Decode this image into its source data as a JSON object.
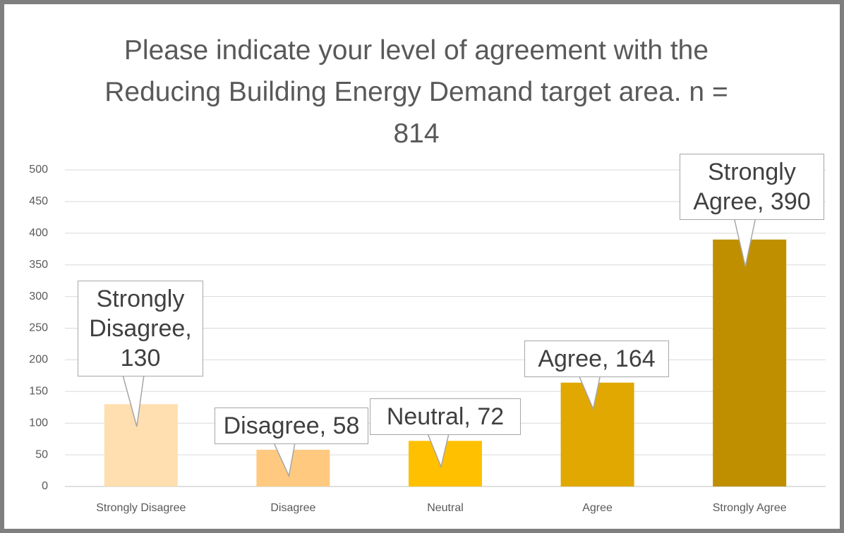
{
  "chart_data": {
    "type": "bar",
    "title": "Please indicate your level of agreement with the Reducing Building Energy Demand target area. n = 814",
    "categories": [
      "Strongly Disagree",
      "Disagree",
      "Neutral",
      "Agree",
      "Strongly Agree"
    ],
    "values": [
      130,
      58,
      72,
      164,
      390
    ],
    "value_labels": [
      "Strongly Disagree, 130",
      "Disagree, 58",
      "Neutral, 72",
      "Agree, 164",
      "Strongly Agree, 390"
    ],
    "colors": [
      "#ffdeb0",
      "#ffca80",
      "#ffc000",
      "#e0a800",
      "#bf8f00"
    ],
    "ylim": [
      0,
      500
    ],
    "yticks": [
      0,
      50,
      100,
      150,
      200,
      250,
      300,
      350,
      400,
      450,
      500
    ],
    "grid": true
  }
}
